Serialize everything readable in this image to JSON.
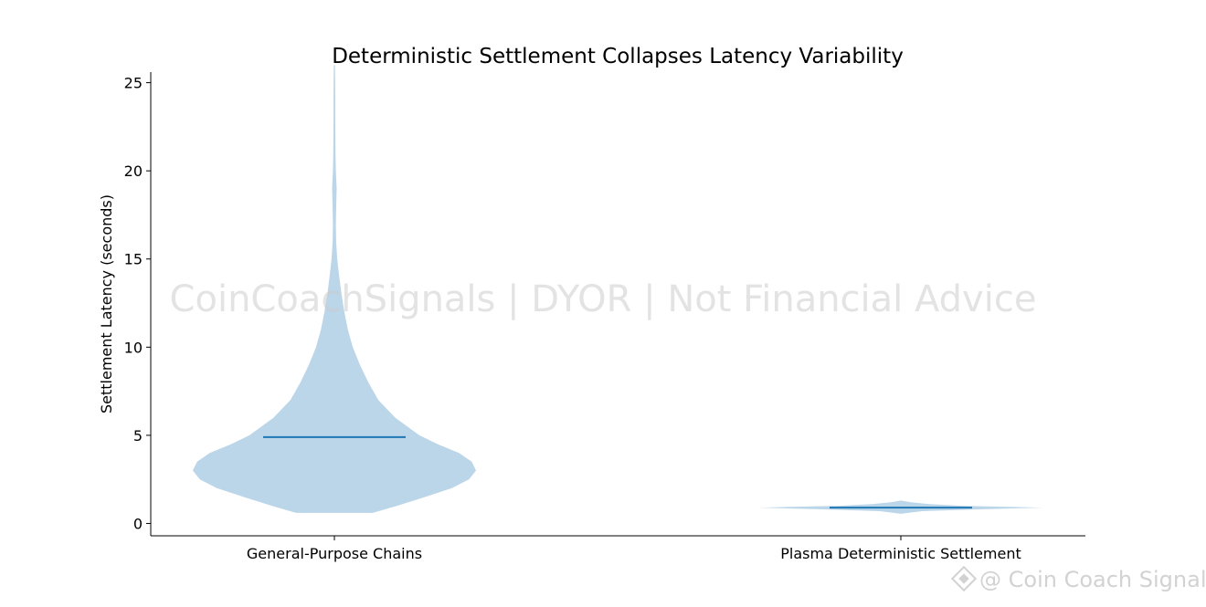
{
  "chart_data": {
    "type": "violin",
    "title": "Deterministic Settlement Collapses Latency Variability",
    "xlabel": "",
    "ylabel": "Settlement Latency (seconds)",
    "ylim": [
      -0.7,
      25.6
    ],
    "yticks": [
      0,
      5,
      10,
      15,
      20,
      25
    ],
    "grid": false,
    "categories": [
      "General-Purpose Chains",
      "Plasma Deterministic Settlement"
    ],
    "colors": {
      "body": "#a8c9e3",
      "median": "#1f77b4"
    },
    "series": [
      {
        "category": "General-Purpose Chains",
        "min": 0.6,
        "max": 26.0,
        "median": 4.9,
        "density_profile": [
          [
            0.6,
            0.27
          ],
          [
            1.0,
            0.44
          ],
          [
            1.5,
            0.64
          ],
          [
            2.0,
            0.83
          ],
          [
            2.5,
            0.95
          ],
          [
            3.0,
            1.0
          ],
          [
            3.5,
            0.97
          ],
          [
            4.0,
            0.88
          ],
          [
            4.5,
            0.73
          ],
          [
            5.0,
            0.6
          ],
          [
            6.0,
            0.43
          ],
          [
            7.0,
            0.31
          ],
          [
            8.0,
            0.24
          ],
          [
            9.0,
            0.18
          ],
          [
            10.0,
            0.13
          ],
          [
            11.0,
            0.095
          ],
          [
            12.0,
            0.07
          ],
          [
            13.0,
            0.05
          ],
          [
            14.0,
            0.034
          ],
          [
            15.0,
            0.02
          ],
          [
            16.0,
            0.012
          ],
          [
            17.0,
            0.01
          ],
          [
            18.0,
            0.013
          ],
          [
            19.0,
            0.016
          ],
          [
            20.0,
            0.01
          ],
          [
            21.0,
            0.008
          ],
          [
            22.0,
            0.007
          ],
          [
            23.0,
            0.006
          ],
          [
            24.0,
            0.006
          ],
          [
            25.0,
            0.005
          ],
          [
            26.0,
            0.004
          ]
        ]
      },
      {
        "category": "Plasma Deterministic Settlement",
        "min": 0.55,
        "max": 1.3,
        "median": 0.9,
        "density_profile": [
          [
            0.55,
            0.0
          ],
          [
            0.6,
            0.05
          ],
          [
            0.7,
            0.15
          ],
          [
            0.8,
            0.55
          ],
          [
            0.9,
            1.0
          ],
          [
            1.0,
            0.45
          ],
          [
            1.1,
            0.2
          ],
          [
            1.2,
            0.07
          ],
          [
            1.3,
            0.0
          ]
        ]
      }
    ]
  },
  "watermark": {
    "center_text": "CoinCoachSignals | DYOR | Not Financial Advice",
    "brand_text": "@ Coin Coach Signals"
  }
}
